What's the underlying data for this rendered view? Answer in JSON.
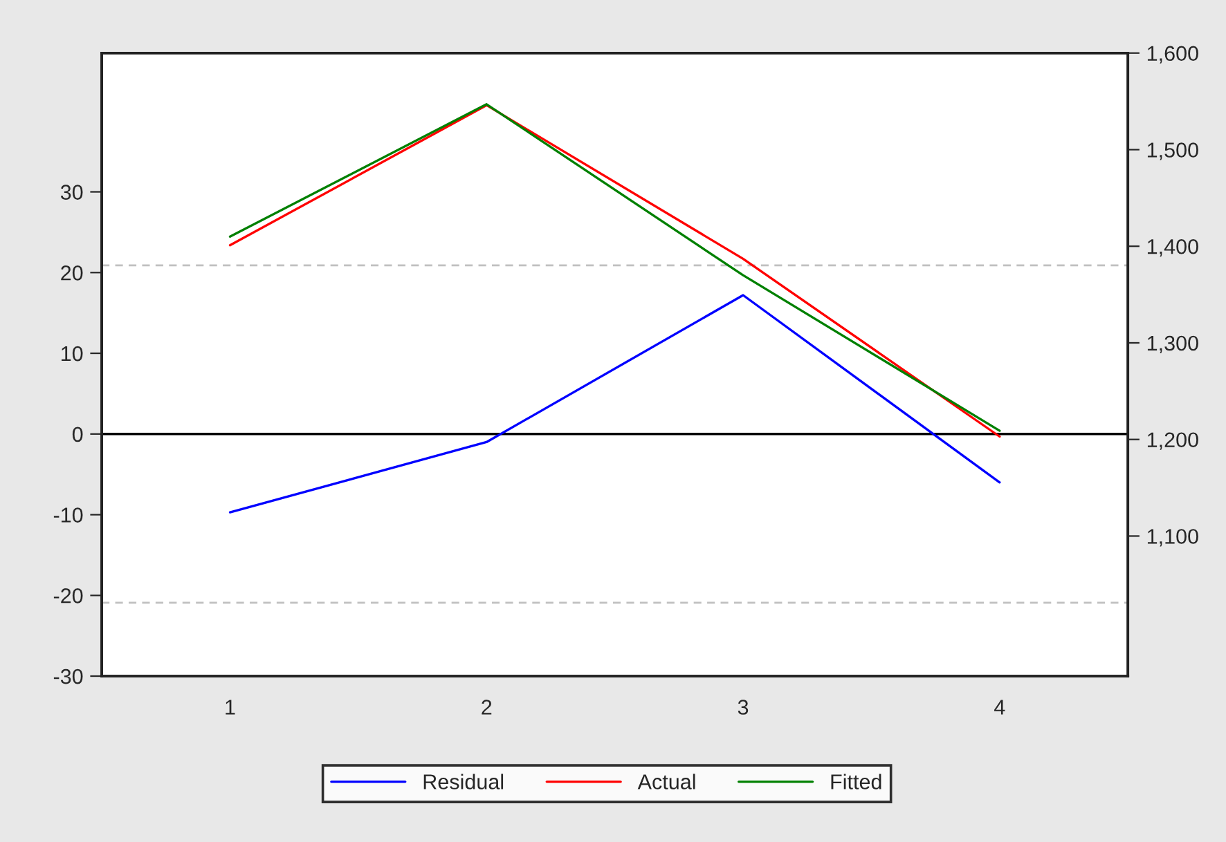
{
  "chart_data": {
    "type": "line",
    "categories": [
      "1",
      "2",
      "3",
      "4"
    ],
    "series": [
      {
        "name": "Residual",
        "color": "#0000ff",
        "values": [
          -9.7,
          -1.0,
          17.2,
          -6.0
        ]
      },
      {
        "name": "Actual",
        "color": "#ff0000",
        "values": [
          1401,
          1546,
          1387,
          1203
        ],
        "axis": "y2"
      },
      {
        "name": "Fitted",
        "color": "#008000",
        "values": [
          1410,
          1547,
          1370,
          1209
        ],
        "axis": "y2"
      }
    ],
    "ylim": [
      -30,
      47.2
    ],
    "yticks": [
      -30,
      -20,
      -10,
      0,
      10,
      20,
      30
    ],
    "y2lim": [
      955,
      1600
    ],
    "y2ticks": [
      {
        "value": 1100,
        "label": "1,100"
      },
      {
        "value": 1200,
        "label": "1,200"
      },
      {
        "value": 1300,
        "label": "1,300"
      },
      {
        "value": 1400,
        "label": "1,400"
      },
      {
        "value": 1500,
        "label": "1,500"
      },
      {
        "value": 1600,
        "label": "1,600"
      }
    ],
    "ref_lines": [
      {
        "axis": "y",
        "value": 0,
        "color": "#000000",
        "line_style": "solid"
      },
      {
        "axis": "y",
        "value": 20.9,
        "color": "#c0c0c0",
        "line_style": "dashed"
      },
      {
        "axis": "y",
        "value": -20.9,
        "color": "#c0c0c0",
        "line_style": "dashed"
      }
    ],
    "legend": "bottom",
    "grid": false
  }
}
